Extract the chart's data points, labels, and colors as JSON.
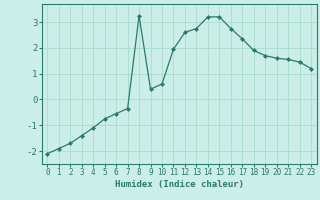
{
  "x": [
    0,
    1,
    2,
    3,
    4,
    5,
    6,
    7,
    8,
    9,
    10,
    11,
    12,
    13,
    14,
    15,
    16,
    17,
    18,
    19,
    20,
    21,
    22,
    23
  ],
  "y": [
    -2.1,
    -1.9,
    -1.7,
    -1.4,
    -1.1,
    -0.75,
    -0.55,
    -0.35,
    3.25,
    0.4,
    0.6,
    1.95,
    2.6,
    2.75,
    3.2,
    3.2,
    2.75,
    2.35,
    1.9,
    1.7,
    1.6,
    1.55,
    1.45,
    1.2
  ],
  "line_color": "#2a7a6e",
  "marker": "D",
  "markersize": 2.0,
  "linewidth": 0.9,
  "xlabel": "Humidex (Indice chaleur)",
  "xlabel_fontsize": 6.5,
  "xlabel_fontweight": "bold",
  "bg_color": "#cceee8",
  "grid_color": "#aaddcc",
  "yticks": [
    -2,
    -1,
    0,
    1,
    2,
    3
  ],
  "xtick_labels": [
    "0",
    "1",
    "2",
    "3",
    "4",
    "5",
    "6",
    "7",
    "8",
    "9",
    "10",
    "11",
    "12",
    "13",
    "14",
    "15",
    "16",
    "17",
    "18",
    "19",
    "20",
    "21",
    "22",
    "23"
  ],
  "ylim": [
    -2.5,
    3.7
  ],
  "xlim": [
    -0.5,
    23.5
  ],
  "tick_fontsize": 5.5,
  "ytick_fontsize": 6.5
}
